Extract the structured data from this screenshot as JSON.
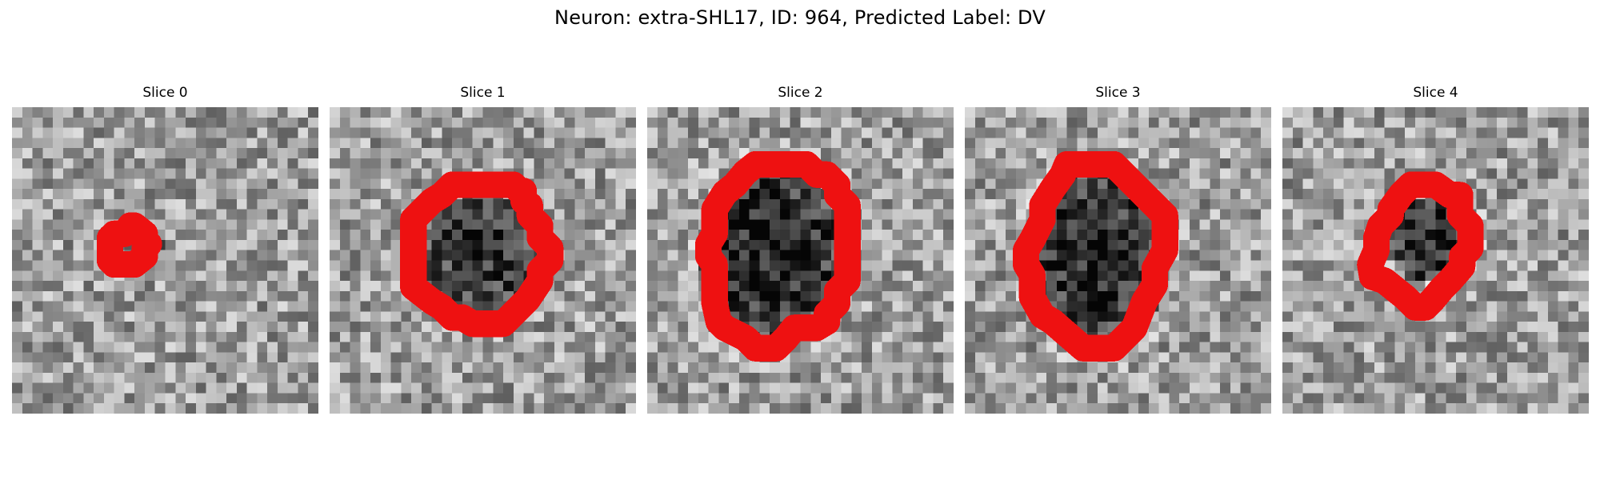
{
  "figure": {
    "title": "Neuron: extra-SHL17, ID: 964, Predicted Label: DV"
  },
  "colors": {
    "contour": "#ee1111",
    "background": "#ffffff",
    "colormap": "grayscale"
  },
  "slices": [
    {
      "title": "Slice 0",
      "contour": [
        [
          11.6,
          11.6
        ],
        [
          12.0,
          11.6
        ],
        [
          13.0,
          12.4
        ],
        [
          13.0,
          13.0
        ],
        [
          13.4,
          13.4
        ],
        [
          13.0,
          13.8
        ],
        [
          13.0,
          14.6
        ],
        [
          12.0,
          15.4
        ],
        [
          10.0,
          15.4
        ],
        [
          9.6,
          15.0
        ],
        [
          9.6,
          12.8
        ],
        [
          10.0,
          12.4
        ],
        [
          11.0,
          12.4
        ]
      ],
      "blob": {
        "cx": 12.0,
        "cy": 13.8,
        "rx": 2.8,
        "ry": 2.6,
        "depth": 0.25
      },
      "seed": 7
    },
    {
      "title": "Slice 1",
      "contour": [
        [
          13.0,
          7.6
        ],
        [
          18.0,
          7.6
        ],
        [
          18.6,
          8.2
        ],
        [
          19.0,
          8.2
        ],
        [
          19.0,
          9.2
        ],
        [
          19.6,
          9.6
        ],
        [
          19.6,
          10.6
        ],
        [
          20.6,
          11.6
        ],
        [
          20.6,
          12.8
        ],
        [
          21.6,
          13.8
        ],
        [
          21.6,
          15.0
        ],
        [
          20.6,
          16.0
        ],
        [
          20.6,
          17.0
        ],
        [
          19.4,
          18.8
        ],
        [
          18.6,
          19.6
        ],
        [
          17.0,
          21.2
        ],
        [
          14.0,
          21.2
        ],
        [
          13.0,
          20.6
        ],
        [
          12.0,
          20.6
        ],
        [
          11.0,
          19.6
        ],
        [
          10.0,
          19.0
        ],
        [
          8.2,
          17.6
        ],
        [
          8.2,
          11.0
        ],
        [
          10.0,
          9.2
        ],
        [
          11.0,
          8.6
        ],
        [
          12.0,
          7.6
        ]
      ],
      "blob": {
        "cx": 14.8,
        "cy": 14.6,
        "rx": 6.2,
        "ry": 6.4,
        "depth": 0.42
      },
      "seed": 21
    },
    {
      "title": "Slice 2",
      "contour": [
        [
          10.6,
          5.6
        ],
        [
          15.6,
          5.6
        ],
        [
          16.6,
          6.6
        ],
        [
          17.6,
          6.6
        ],
        [
          18.6,
          7.6
        ],
        [
          18.6,
          8.6
        ],
        [
          19.6,
          9.6
        ],
        [
          19.6,
          17.0
        ],
        [
          18.6,
          18.0
        ],
        [
          18.6,
          19.2
        ],
        [
          17.6,
          20.2
        ],
        [
          17.6,
          21.0
        ],
        [
          16.6,
          21.6
        ],
        [
          14.4,
          21.6
        ],
        [
          13.6,
          22.6
        ],
        [
          12.6,
          23.6
        ],
        [
          10.6,
          23.6
        ],
        [
          9.6,
          22.6
        ],
        [
          7.6,
          21.6
        ],
        [
          7.0,
          21.0
        ],
        [
          6.6,
          19.2
        ],
        [
          6.6,
          15.4
        ],
        [
          6.0,
          14.6
        ],
        [
          6.0,
          13.4
        ],
        [
          6.6,
          12.4
        ],
        [
          6.6,
          10.0
        ],
        [
          7.6,
          8.4
        ],
        [
          8.6,
          7.6
        ],
        [
          9.6,
          6.4
        ]
      ],
      "blob": {
        "cx": 12.4,
        "cy": 14.4,
        "rx": 7.2,
        "ry": 9.0,
        "depth": 0.52
      },
      "seed": 35
    },
    {
      "title": "Slice 3",
      "contour": [
        [
          10.0,
          5.6
        ],
        [
          14.6,
          5.6
        ],
        [
          15.6,
          6.6
        ],
        [
          16.6,
          7.6
        ],
        [
          17.6,
          8.6
        ],
        [
          18.6,
          9.6
        ],
        [
          19.6,
          10.6
        ],
        [
          19.6,
          14.0
        ],
        [
          18.6,
          15.8
        ],
        [
          18.6,
          17.4
        ],
        [
          17.6,
          19.0
        ],
        [
          16.6,
          21.6
        ],
        [
          14.6,
          23.6
        ],
        [
          12.6,
          23.6
        ],
        [
          11.6,
          23.6
        ],
        [
          8.6,
          21.0
        ],
        [
          7.6,
          20.4
        ],
        [
          6.6,
          18.6
        ],
        [
          6.6,
          16.4
        ],
        [
          6.0,
          15.4
        ],
        [
          6.0,
          14.0
        ],
        [
          6.6,
          13.0
        ],
        [
          7.6,
          11.0
        ],
        [
          7.6,
          9.6
        ],
        [
          8.6,
          8.0
        ],
        [
          9.6,
          6.6
        ]
      ],
      "blob": {
        "cx": 12.8,
        "cy": 14.6,
        "rx": 6.8,
        "ry": 9.0,
        "depth": 0.5
      },
      "seed": 49
    },
    {
      "title": "Slice 4",
      "contour": [
        [
          12.6,
          7.6
        ],
        [
          15.0,
          7.6
        ],
        [
          16.4,
          8.6
        ],
        [
          17.4,
          8.6
        ],
        [
          17.4,
          10.6
        ],
        [
          18.4,
          11.6
        ],
        [
          18.4,
          13.8
        ],
        [
          17.6,
          14.6
        ],
        [
          17.6,
          15.6
        ],
        [
          16.4,
          17.0
        ],
        [
          15.6,
          17.8
        ],
        [
          14.6,
          19.0
        ],
        [
          14.0,
          19.6
        ],
        [
          13.0,
          19.6
        ],
        [
          12.0,
          18.6
        ],
        [
          11.0,
          17.8
        ],
        [
          10.0,
          17.0
        ],
        [
          8.8,
          16.6
        ],
        [
          8.6,
          15.4
        ],
        [
          9.2,
          14.0
        ],
        [
          9.2,
          12.8
        ],
        [
          9.6,
          11.6
        ],
        [
          10.6,
          10.6
        ],
        [
          10.6,
          10.0
        ],
        [
          11.6,
          8.6
        ]
      ],
      "blob": {
        "cx": 14.6,
        "cy": 12.8,
        "rx": 4.6,
        "ry": 4.4,
        "depth": 0.5
      },
      "seed": 63
    }
  ]
}
